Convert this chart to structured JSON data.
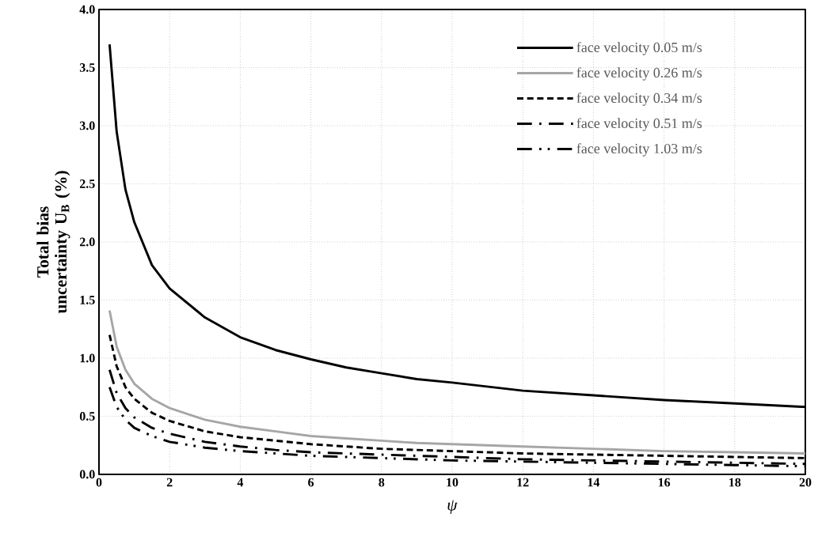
{
  "chart_data": {
    "type": "line",
    "xlabel": "*ψ*",
    "ylabel": "Total bias uncertainty U$_{B}$ (%)",
    "xlim": [
      0,
      20
    ],
    "xticks": [
      0,
      2,
      4,
      6,
      8,
      10,
      12,
      14,
      16,
      18,
      20
    ],
    "ylim": [
      0,
      4
    ],
    "yticks": [
      {
        "value": 0,
        "label": "0.0"
      },
      {
        "value": 0.5,
        "label": "0.5"
      },
      {
        "value": 1,
        "label": "1.0"
      },
      {
        "value": 1.5,
        "label": "1.5"
      },
      {
        "value": 2,
        "label": "2.0"
      },
      {
        "value": 2.5,
        "label": "2.5"
      },
      {
        "value": 3,
        "label": "3.0"
      },
      {
        "value": 3.5,
        "label": "3.5"
      },
      {
        "value": 4,
        "label": "4.0"
      }
    ],
    "grid": true,
    "legend": "top right",
    "marker": "none",
    "x": [
      0.3,
      0.5,
      0.75,
      1,
      1.5,
      2,
      3,
      4,
      5,
      6,
      7,
      8,
      9,
      10,
      12,
      14,
      16,
      18,
      20
    ],
    "series": [
      {
        "name": "face velocity 0.05 m/s",
        "color": "#000000",
        "line_style": "solid",
        "values": [
          3.7,
          2.95,
          2.45,
          2.17,
          1.8,
          1.6,
          1.35,
          1.18,
          1.07,
          0.99,
          0.92,
          0.87,
          0.82,
          0.79,
          0.72,
          0.68,
          0.64,
          0.61,
          0.58
        ]
      },
      {
        "name": "face velocity 0.26 m/s",
        "color": "#a6a6a6",
        "line_style": "solid",
        "values": [
          1.41,
          1.1,
          0.9,
          0.78,
          0.65,
          0.57,
          0.47,
          0.41,
          0.37,
          0.33,
          0.31,
          0.29,
          0.27,
          0.26,
          0.24,
          0.22,
          0.2,
          0.19,
          0.18
        ]
      },
      {
        "name": "face velocity 0.34 m/s",
        "color": "#000000",
        "line_style": "dashed",
        "values": [
          1.2,
          0.93,
          0.75,
          0.65,
          0.53,
          0.46,
          0.37,
          0.32,
          0.29,
          0.26,
          0.24,
          0.22,
          0.21,
          0.2,
          0.18,
          0.17,
          0.16,
          0.15,
          0.14
        ]
      },
      {
        "name": "face velocity 0.51 m/s",
        "color": "#000000",
        "line_style": "dashdot",
        "values": [
          0.9,
          0.7,
          0.57,
          0.49,
          0.4,
          0.35,
          0.28,
          0.24,
          0.21,
          0.19,
          0.18,
          0.17,
          0.16,
          0.15,
          0.13,
          0.12,
          0.11,
          0.1,
          0.09
        ]
      },
      {
        "name": "face velocity 1.03 m/s",
        "color": "#000000",
        "line_style": "dashdotdot",
        "values": [
          0.75,
          0.58,
          0.47,
          0.4,
          0.33,
          0.28,
          0.23,
          0.2,
          0.18,
          0.16,
          0.15,
          0.14,
          0.13,
          0.12,
          0.11,
          0.1,
          0.09,
          0.08,
          0.07
        ]
      }
    ]
  }
}
